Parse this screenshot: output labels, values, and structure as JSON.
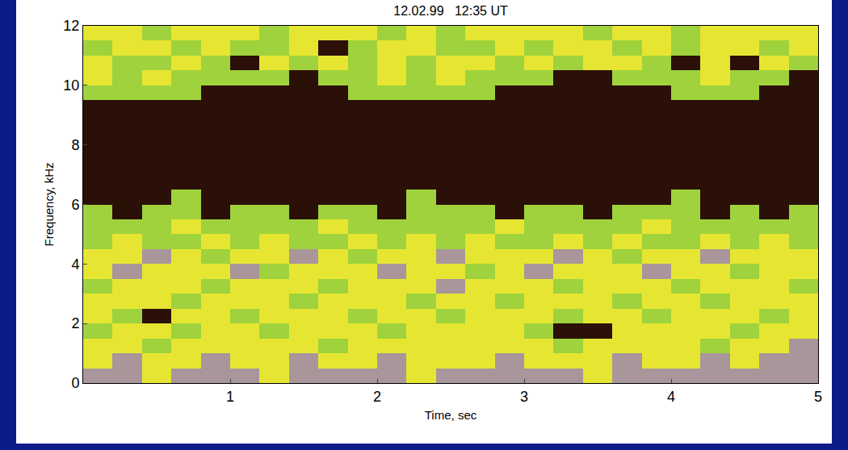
{
  "chart_data": {
    "type": "heatmap",
    "title": "12.02.99   12:35 UT",
    "x_label": "Time, sec",
    "y_label": "Frequency, kHz",
    "xlim": [
      0,
      5
    ],
    "ylim": [
      0,
      12
    ],
    "xticks": [
      1,
      2,
      3,
      4,
      5
    ],
    "yticks": [
      0,
      2,
      4,
      6,
      8,
      10,
      12
    ],
    "zlim": [
      0,
      3
    ],
    "x": [
      0.1,
      0.3,
      0.5,
      0.7,
      0.9,
      1.1,
      1.3,
      1.5,
      1.7,
      1.9,
      2.1,
      2.3,
      2.5,
      2.7,
      2.9,
      3.1,
      3.3,
      3.5,
      3.7,
      3.9,
      4.1,
      4.3,
      4.5,
      4.7,
      4.9
    ],
    "y": [
      0.25,
      0.75,
      1.25,
      1.75,
      2.25,
      2.75,
      3.25,
      3.75,
      4.25,
      4.75,
      5.25,
      5.75,
      6.25,
      6.75,
      7.25,
      7.75,
      8.25,
      8.75,
      9.25,
      9.75,
      10.25,
      10.75,
      11.25,
      11.75
    ],
    "z": [
      [
        0,
        0,
        1,
        0,
        0,
        0,
        1,
        0,
        0,
        0,
        0,
        1,
        0,
        0,
        0,
        0,
        0,
        1,
        0,
        0,
        0,
        0,
        0,
        0,
        0
      ],
      [
        1,
        0,
        1,
        1,
        0,
        1,
        1,
        0,
        1,
        1,
        0,
        1,
        1,
        1,
        0,
        1,
        1,
        1,
        0,
        1,
        1,
        0,
        1,
        0,
        0
      ],
      [
        1,
        1,
        2,
        1,
        1,
        1,
        1,
        1,
        2,
        1,
        1,
        1,
        1,
        1,
        1,
        1,
        2,
        1,
        1,
        1,
        1,
        2,
        1,
        1,
        0
      ],
      [
        2,
        1,
        1,
        2,
        1,
        1,
        2,
        1,
        1,
        1,
        2,
        1,
        1,
        1,
        1,
        2,
        3,
        3,
        1,
        1,
        1,
        1,
        2,
        1,
        1
      ],
      [
        1,
        2,
        3,
        1,
        1,
        2,
        1,
        1,
        1,
        2,
        1,
        1,
        2,
        1,
        1,
        1,
        2,
        1,
        1,
        2,
        1,
        1,
        1,
        2,
        1
      ],
      [
        1,
        1,
        1,
        2,
        1,
        1,
        1,
        2,
        1,
        1,
        1,
        2,
        1,
        1,
        2,
        1,
        1,
        1,
        2,
        1,
        1,
        2,
        1,
        1,
        1
      ],
      [
        2,
        1,
        1,
        1,
        2,
        1,
        1,
        1,
        2,
        1,
        1,
        1,
        0,
        1,
        1,
        1,
        2,
        1,
        1,
        1,
        2,
        1,
        1,
        1,
        2
      ],
      [
        1,
        0,
        1,
        1,
        1,
        0,
        2,
        1,
        1,
        1,
        0,
        1,
        1,
        2,
        1,
        0,
        1,
        1,
        1,
        0,
        1,
        1,
        2,
        1,
        1
      ],
      [
        1,
        1,
        0,
        1,
        2,
        1,
        1,
        0,
        1,
        2,
        1,
        1,
        0,
        1,
        1,
        1,
        0,
        1,
        2,
        1,
        1,
        0,
        1,
        1,
        1
      ],
      [
        2,
        1,
        2,
        2,
        1,
        2,
        1,
        2,
        2,
        1,
        2,
        1,
        2,
        1,
        2,
        2,
        1,
        2,
        1,
        2,
        2,
        1,
        2,
        1,
        2
      ],
      [
        2,
        2,
        2,
        1,
        2,
        2,
        2,
        2,
        1,
        2,
        2,
        2,
        2,
        2,
        1,
        2,
        2,
        2,
        2,
        1,
        2,
        2,
        2,
        2,
        2
      ],
      [
        2,
        3,
        2,
        2,
        3,
        2,
        2,
        3,
        2,
        2,
        3,
        2,
        2,
        2,
        3,
        2,
        2,
        3,
        2,
        2,
        2,
        3,
        2,
        3,
        2
      ],
      [
        3,
        3,
        3,
        2,
        3,
        3,
        3,
        3,
        3,
        3,
        3,
        2,
        3,
        3,
        3,
        3,
        3,
        3,
        3,
        3,
        2,
        3,
        3,
        3,
        3
      ],
      [
        3,
        3,
        3,
        3,
        3,
        3,
        3,
        3,
        3,
        3,
        3,
        3,
        3,
        3,
        3,
        3,
        3,
        3,
        3,
        3,
        3,
        3,
        3,
        3,
        3
      ],
      [
        3,
        3,
        3,
        3,
        3,
        3,
        3,
        3,
        3,
        3,
        3,
        3,
        3,
        3,
        3,
        3,
        3,
        3,
        3,
        3,
        3,
        3,
        3,
        3,
        3
      ],
      [
        3,
        3,
        3,
        3,
        3,
        3,
        3,
        3,
        3,
        3,
        3,
        3,
        3,
        3,
        3,
        3,
        3,
        3,
        3,
        3,
        3,
        3,
        3,
        3,
        3
      ],
      [
        3,
        3,
        3,
        3,
        3,
        3,
        3,
        3,
        3,
        3,
        3,
        3,
        3,
        3,
        3,
        3,
        3,
        3,
        3,
        3,
        3,
        3,
        3,
        3,
        3
      ],
      [
        3,
        3,
        3,
        3,
        3,
        3,
        3,
        3,
        3,
        3,
        3,
        3,
        3,
        3,
        3,
        3,
        3,
        3,
        3,
        3,
        3,
        3,
        3,
        3,
        3
      ],
      [
        3,
        3,
        3,
        3,
        3,
        3,
        3,
        3,
        3,
        3,
        3,
        3,
        3,
        3,
        3,
        3,
        3,
        3,
        3,
        3,
        3,
        3,
        3,
        3,
        3
      ],
      [
        2,
        2,
        2,
        2,
        3,
        3,
        3,
        3,
        3,
        2,
        2,
        2,
        2,
        2,
        3,
        3,
        3,
        3,
        3,
        3,
        2,
        2,
        2,
        3,
        3
      ],
      [
        1,
        2,
        1,
        2,
        2,
        2,
        2,
        3,
        2,
        2,
        1,
        2,
        1,
        2,
        2,
        2,
        3,
        3,
        2,
        2,
        2,
        1,
        2,
        2,
        3
      ],
      [
        1,
        2,
        2,
        1,
        2,
        3,
        1,
        2,
        1,
        2,
        1,
        2,
        1,
        1,
        2,
        1,
        2,
        1,
        1,
        2,
        3,
        1,
        3,
        1,
        2
      ],
      [
        2,
        1,
        1,
        2,
        1,
        2,
        2,
        1,
        3,
        2,
        1,
        1,
        2,
        2,
        1,
        2,
        1,
        1,
        2,
        1,
        2,
        1,
        1,
        2,
        1
      ],
      [
        1,
        1,
        2,
        1,
        1,
        1,
        2,
        1,
        1,
        1,
        2,
        1,
        2,
        1,
        1,
        1,
        1,
        2,
        1,
        1,
        2,
        1,
        1,
        1,
        1
      ]
    ]
  }
}
